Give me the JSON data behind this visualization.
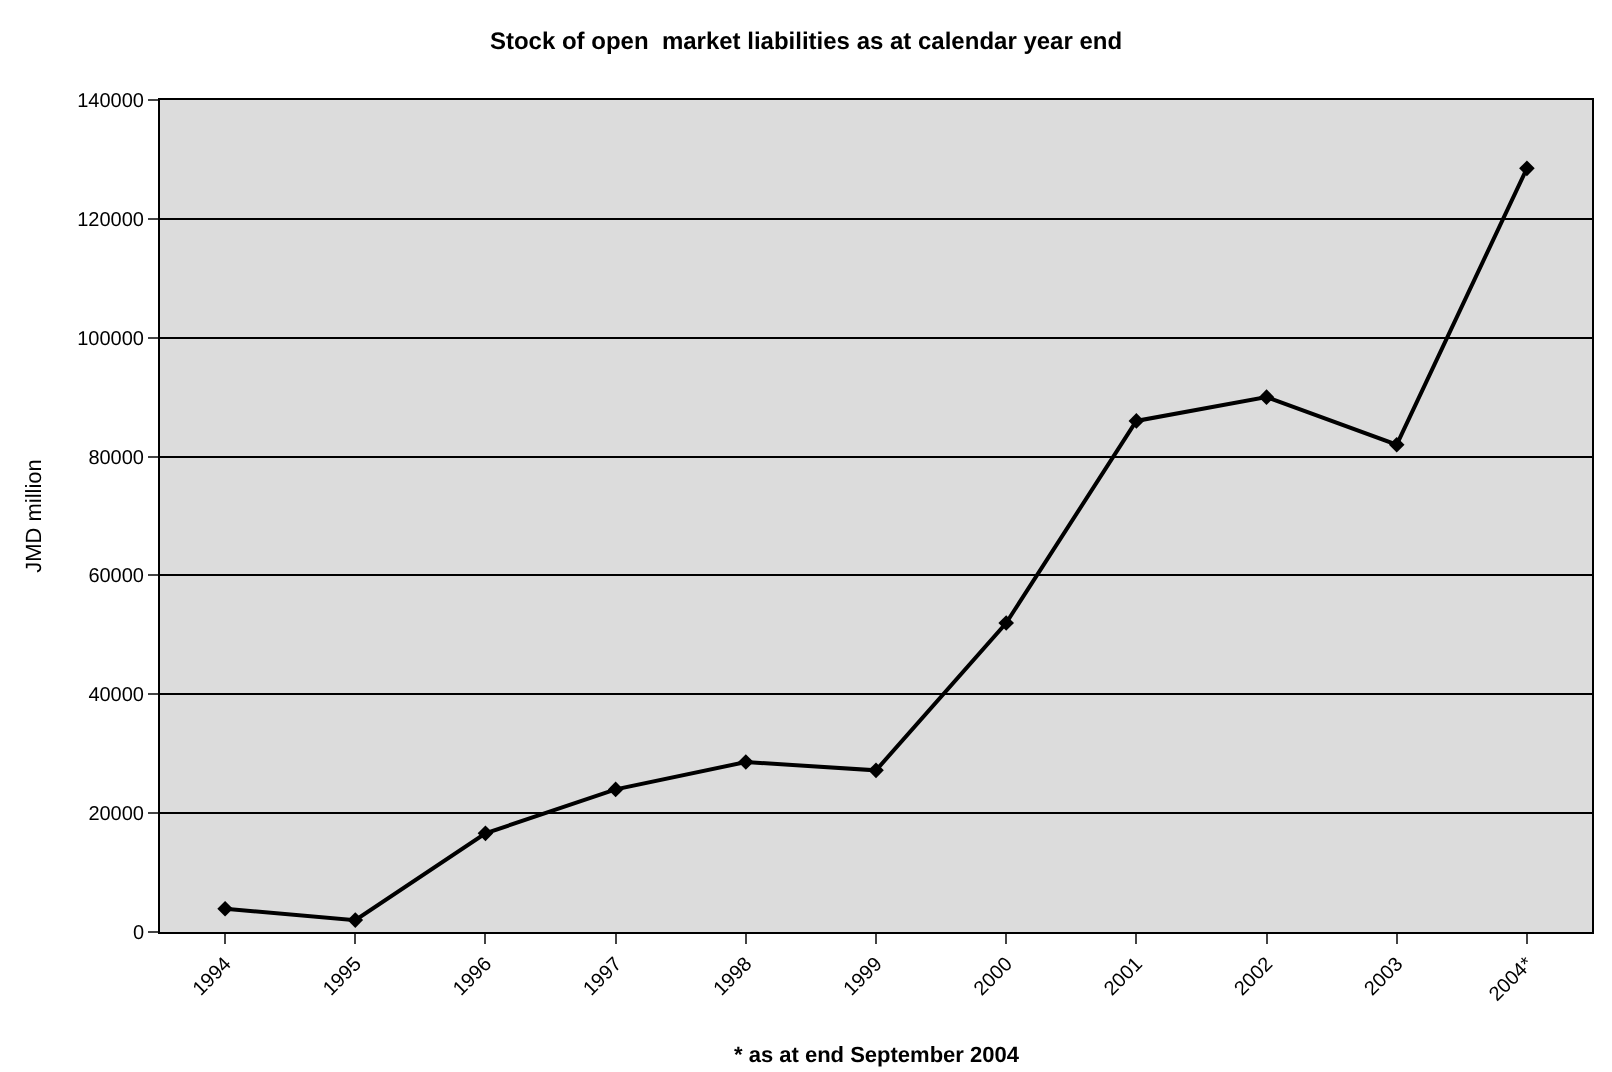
{
  "chart_data": {
    "type": "line",
    "title": "Stock of open  market liabilities as at calendar year end",
    "ylabel": "JMD million",
    "categories": [
      "1994",
      "1995",
      "1996",
      "1997",
      "1998",
      "1999",
      "2000",
      "2001",
      "2002",
      "2003",
      "2004*"
    ],
    "series": [
      {
        "color": "#000000",
        "values": [
          3900,
          2000,
          16600,
          24000,
          28600,
          27200,
          52000,
          86000,
          90000,
          82000,
          128500
        ]
      }
    ],
    "ylim": [
      0,
      140000
    ],
    "yticks": [
      0,
      20000,
      40000,
      60000,
      80000,
      100000,
      120000,
      140000
    ],
    "grid": "y",
    "marker": "diamond",
    "line_style": "solid",
    "annotations": [
      "* as at end September 2004"
    ]
  }
}
